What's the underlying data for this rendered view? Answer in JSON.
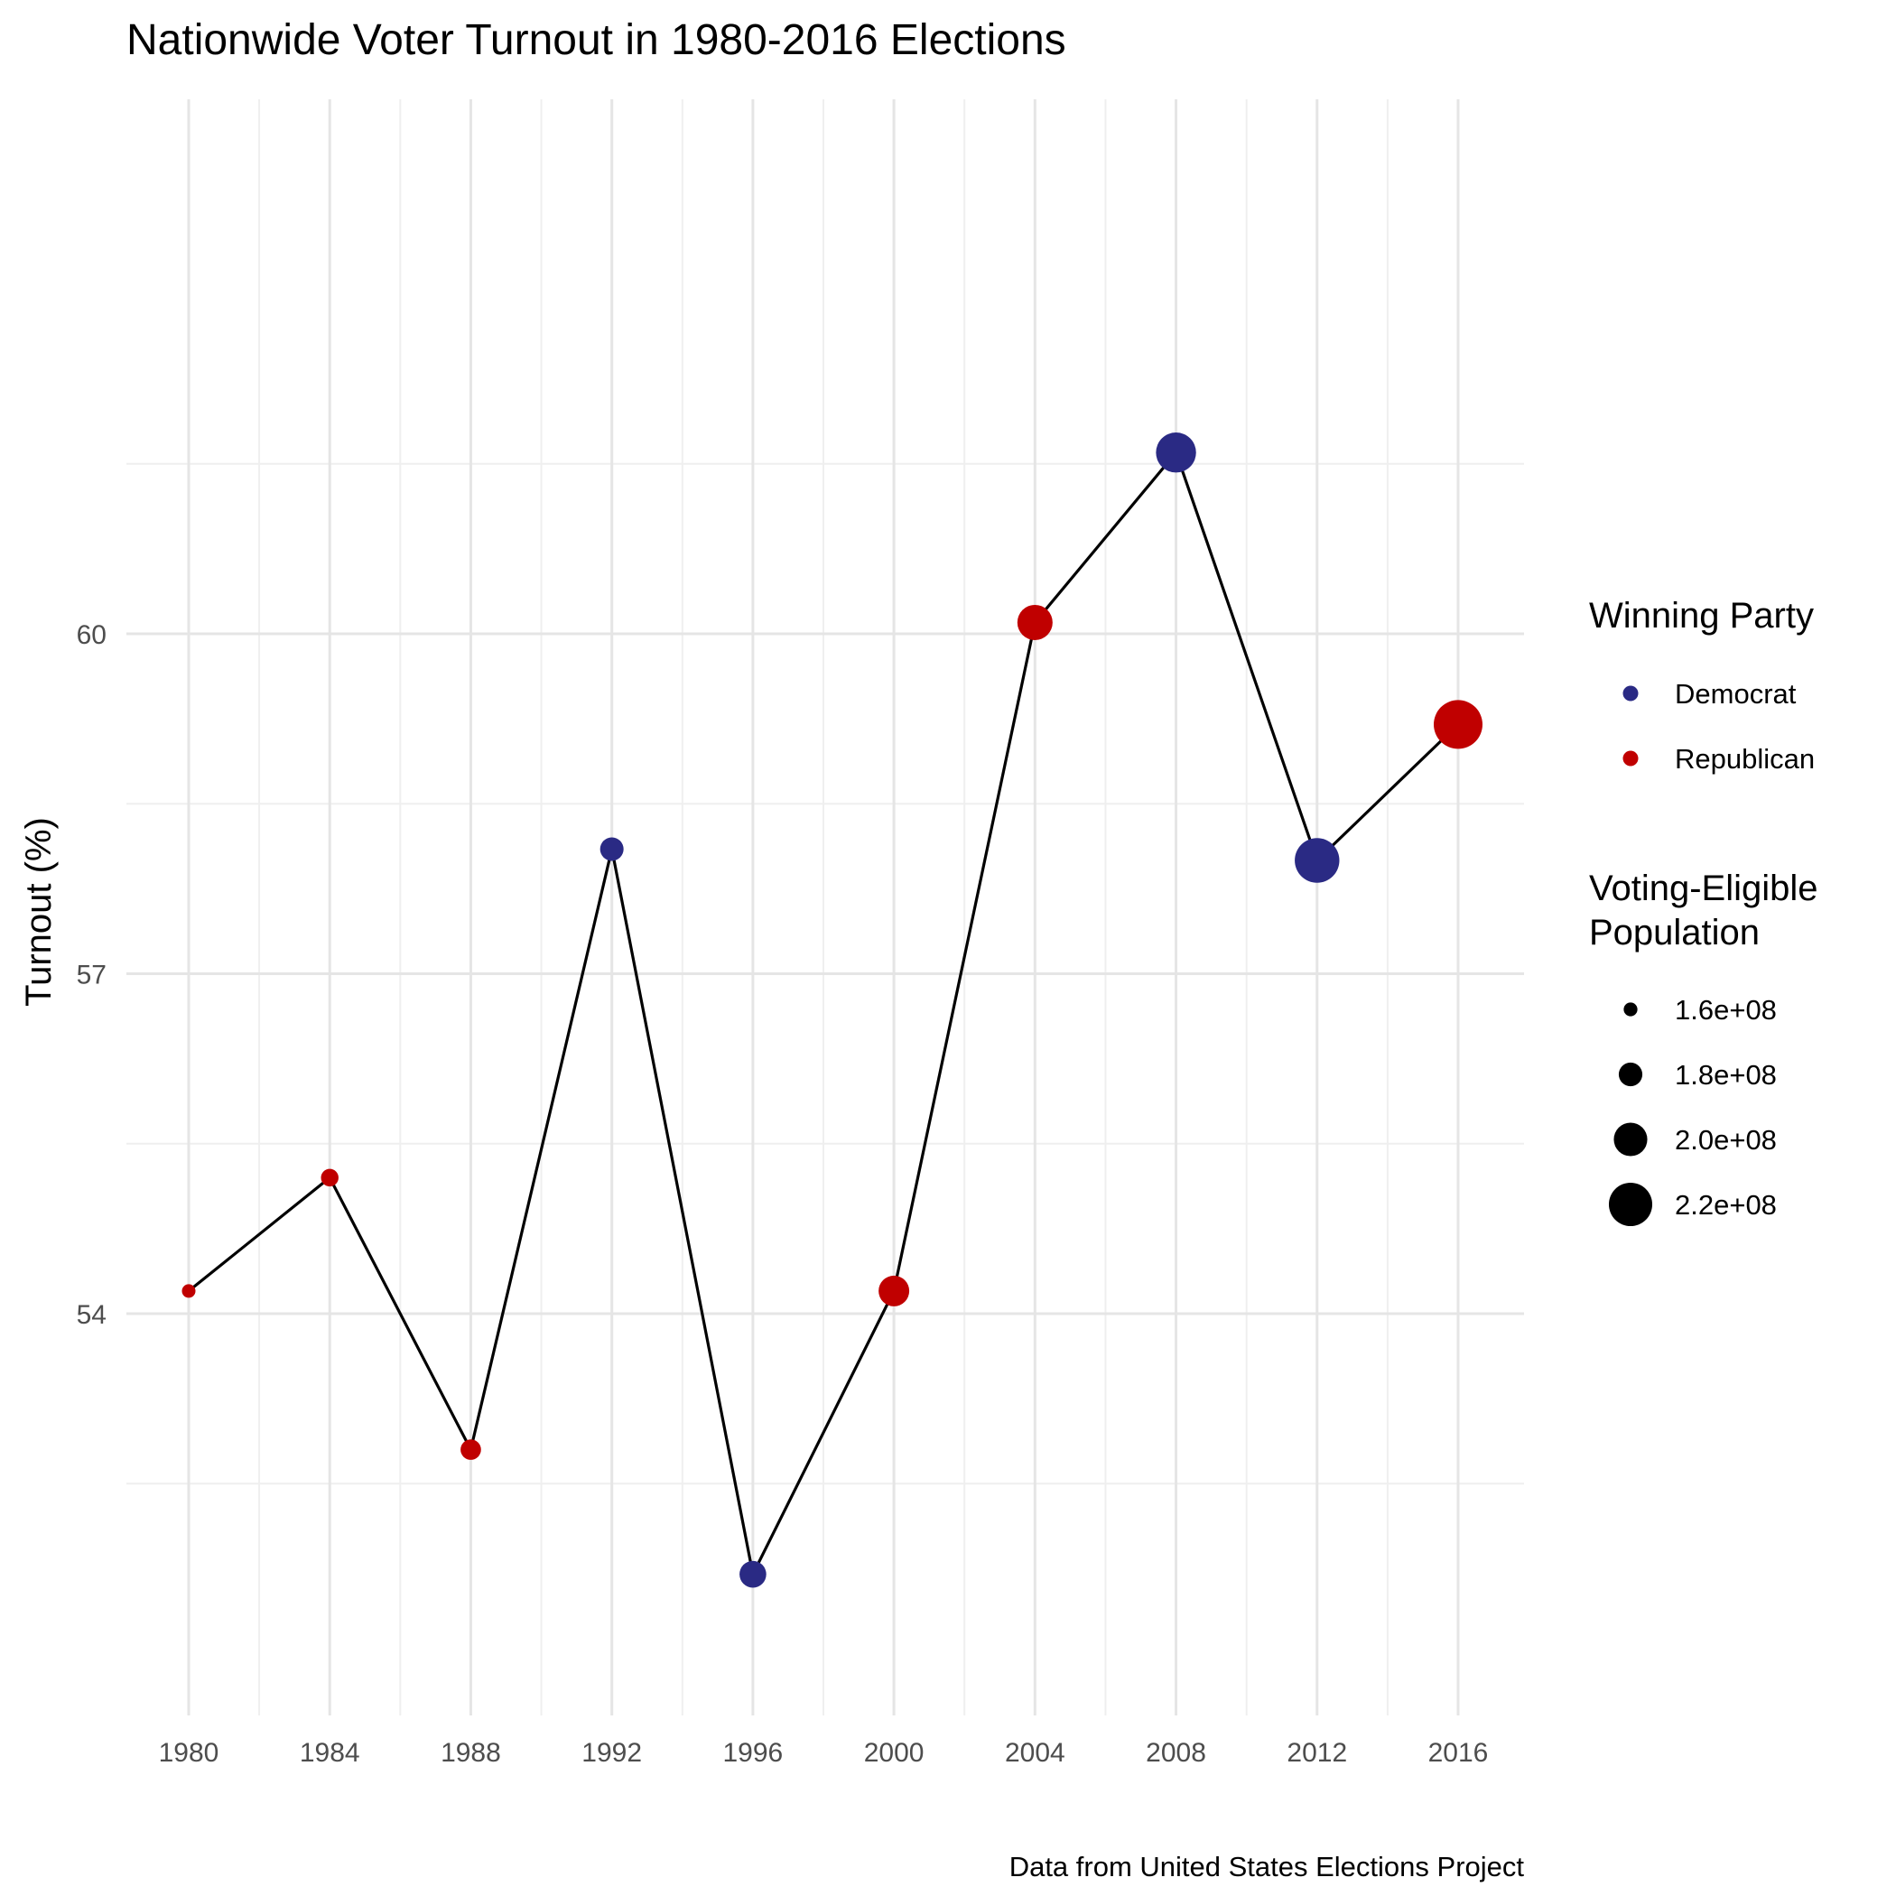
{
  "chart_data": {
    "type": "scatter",
    "title": "Nationwide Voter Turnout in 1980-2016 Elections",
    "xlabel": "",
    "ylabel": "Turnout (%)",
    "caption": "Data from United States Elections Project",
    "xlim": [
      1980,
      2016
    ],
    "ylim": [
      51.4,
      61.8
    ],
    "x_ticks": [
      1980,
      1984,
      1988,
      1992,
      1996,
      2000,
      2004,
      2008,
      2012,
      2016
    ],
    "y_ticks": [
      54,
      57,
      60
    ],
    "grid": true,
    "points": [
      {
        "x": 1980,
        "y": 54.2,
        "party": "Republican",
        "population": 159600000
      },
      {
        "x": 1984,
        "y": 55.2,
        "party": "Republican",
        "population": 167700000
      },
      {
        "x": 1988,
        "y": 52.8,
        "party": "Republican",
        "population": 173600000
      },
      {
        "x": 1992,
        "y": 58.1,
        "party": "Democrat",
        "population": 179700000
      },
      {
        "x": 1996,
        "y": 51.7,
        "party": "Democrat",
        "population": 186300000
      },
      {
        "x": 2000,
        "y": 54.2,
        "party": "Republican",
        "population": 194300000
      },
      {
        "x": 2004,
        "y": 60.1,
        "party": "Republican",
        "population": 203500000
      },
      {
        "x": 2008,
        "y": 61.6,
        "party": "Democrat",
        "population": 213300000
      },
      {
        "x": 2012,
        "y": 58.0,
        "party": "Democrat",
        "population": 222500000
      },
      {
        "x": 2016,
        "y": 59.2,
        "party": "Republican",
        "population": 230900000
      }
    ],
    "legend": {
      "placement": "right",
      "color": {
        "title": "Winning Party",
        "items": [
          {
            "label": "Democrat",
            "color": "#2a2a84"
          },
          {
            "label": "Republican",
            "color": "#c00000"
          }
        ]
      },
      "size": {
        "title_lines": [
          "Voting-Eligible",
          "Population"
        ],
        "items": [
          {
            "label": "1.6e+08",
            "value": 160000000
          },
          {
            "label": "1.8e+08",
            "value": 180000000
          },
          {
            "label": "2.0e+08",
            "value": 200000000
          },
          {
            "label": "2.2e+08",
            "value": 220000000
          }
        ]
      }
    }
  }
}
